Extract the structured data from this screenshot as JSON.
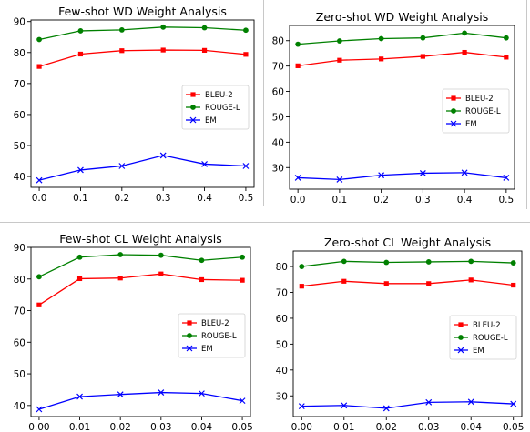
{
  "chart_data": [
    {
      "type": "line",
      "title": "Few-shot WD Weight Analysis",
      "xlabel": "",
      "ylabel": "",
      "x": [
        0.0,
        0.1,
        0.2,
        0.3,
        0.4,
        0.5
      ],
      "x_tick_labels": [
        "0.0",
        "0.1",
        "0.2",
        "0.3",
        "0.4",
        "0.5"
      ],
      "xlim": [
        -0.02,
        0.52
      ],
      "ylim": [
        36.5,
        90.5
      ],
      "y_ticks": [
        40,
        50,
        60,
        70,
        80,
        90
      ],
      "grid": false,
      "legend_position": "center-right",
      "series": [
        {
          "name": "BLEU-2",
          "color": "#ff0000",
          "marker": "square",
          "values": [
            75.5,
            79.5,
            80.6,
            80.8,
            80.7,
            79.4
          ]
        },
        {
          "name": "ROUGE-L",
          "color": "#008000",
          "marker": "circle",
          "values": [
            84.2,
            87.0,
            87.3,
            88.2,
            88.0,
            87.2
          ]
        },
        {
          "name": "EM",
          "color": "#0000ff",
          "marker": "x",
          "values": [
            38.8,
            42.1,
            43.4,
            46.8,
            44.0,
            43.4
          ]
        }
      ]
    },
    {
      "type": "line",
      "title": "Zero-shot WD Weight Analysis",
      "xlabel": "",
      "ylabel": "",
      "x": [
        0.0,
        0.1,
        0.2,
        0.3,
        0.4,
        0.5
      ],
      "x_tick_labels": [
        "0.0",
        "0.1",
        "0.2",
        "0.3",
        "0.4",
        "0.5"
      ],
      "xlim": [
        -0.02,
        0.52
      ],
      "ylim": [
        21.5,
        86.0
      ],
      "y_ticks": [
        30,
        40,
        50,
        60,
        70,
        80
      ],
      "grid": false,
      "legend_position": "center-right",
      "series": [
        {
          "name": "BLEU-2",
          "color": "#ff0000",
          "marker": "square",
          "values": [
            70.1,
            72.3,
            72.8,
            73.8,
            75.4,
            73.5
          ]
        },
        {
          "name": "ROUGE-L",
          "color": "#008000",
          "marker": "circle",
          "values": [
            78.6,
            79.9,
            80.8,
            81.1,
            83.0,
            81.1
          ]
        },
        {
          "name": "EM",
          "color": "#0000ff",
          "marker": "x",
          "values": [
            26.0,
            25.3,
            27.0,
            27.8,
            28.0,
            26.0
          ]
        }
      ]
    },
    {
      "type": "line",
      "title": "Few-shot CL Weight Analysis",
      "xlabel": "",
      "ylabel": "",
      "x": [
        0.0,
        0.01,
        0.02,
        0.03,
        0.04,
        0.05
      ],
      "x_tick_labels": [
        "0.00",
        "0.01",
        "0.02",
        "0.03",
        "0.04",
        "0.05"
      ],
      "xlim": [
        -0.002,
        0.052
      ],
      "ylim": [
        36.5,
        90.0
      ],
      "y_ticks": [
        40,
        50,
        60,
        70,
        80,
        90
      ],
      "grid": false,
      "legend_position": "center-right",
      "series": [
        {
          "name": "BLEU-2",
          "color": "#ff0000",
          "marker": "square",
          "values": [
            71.8,
            80.1,
            80.3,
            81.6,
            79.8,
            79.6
          ]
        },
        {
          "name": "ROUGE-L",
          "color": "#008000",
          "marker": "circle",
          "values": [
            80.7,
            86.9,
            87.7,
            87.5,
            85.9,
            86.9
          ]
        },
        {
          "name": "EM",
          "color": "#0000ff",
          "marker": "x",
          "values": [
            38.8,
            42.8,
            43.5,
            44.1,
            43.8,
            41.5
          ]
        }
      ]
    },
    {
      "type": "line",
      "title": "Zero-shot CL Weight Analysis",
      "xlabel": "",
      "ylabel": "",
      "x": [
        0.0,
        0.01,
        0.02,
        0.03,
        0.04,
        0.05
      ],
      "x_tick_labels": [
        "0.00",
        "0.01",
        "0.02",
        "0.03",
        "0.04",
        "0.05"
      ],
      "xlim": [
        -0.002,
        0.052
      ],
      "ylim": [
        22.0,
        86.0
      ],
      "y_ticks": [
        30,
        40,
        50,
        60,
        70,
        80
      ],
      "grid": false,
      "legend_position": "center-right",
      "series": [
        {
          "name": "BLEU-2",
          "color": "#ff0000",
          "marker": "square",
          "values": [
            72.4,
            74.3,
            73.4,
            73.4,
            74.8,
            72.8
          ]
        },
        {
          "name": "ROUGE-L",
          "color": "#008000",
          "marker": "circle",
          "values": [
            80.0,
            82.0,
            81.6,
            81.8,
            82.0,
            81.4
          ]
        },
        {
          "name": "EM",
          "color": "#0000ff",
          "marker": "x",
          "values": [
            26.0,
            26.3,
            25.2,
            27.5,
            27.7,
            26.9
          ]
        }
      ]
    }
  ]
}
